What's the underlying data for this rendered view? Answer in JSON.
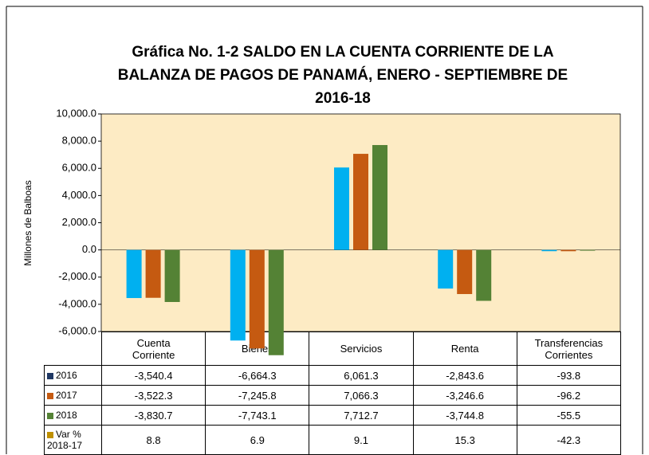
{
  "chart_data": {
    "type": "bar",
    "title": [
      "Gráfica No. 1-2  SALDO EN LA CUENTA CORRIENTE DE LA",
      "BALANZA DE PAGOS DE PANAMÁ, ENERO - SEPTIEMBRE DE",
      "2016-18"
    ],
    "y_label": "Millones de Balboas",
    "categories": [
      "Cuenta Corriente",
      "Bienes",
      "Servicios",
      "Renta",
      "Transferencias Corrientes"
    ],
    "series": [
      {
        "name": "2016",
        "color": "#00b0f0",
        "key_color": "#1f3864",
        "values": [
          -3540.4,
          -6664.3,
          6061.3,
          -2843.6,
          -93.8
        ],
        "value_labels": [
          "-3,540.4",
          "-6,664.3",
          "6,061.3",
          "-2,843.6",
          "-93.8"
        ]
      },
      {
        "name": "2017",
        "color": "#c55a11",
        "key_color": "#c55a11",
        "values": [
          -3522.3,
          -7245.8,
          7066.3,
          -3246.6,
          -96.2
        ],
        "value_labels": [
          "-3,522.3",
          "-7,245.8",
          "7,066.3",
          "-3,246.6",
          "-96.2"
        ]
      },
      {
        "name": "2018",
        "color": "#548235",
        "key_color": "#548235",
        "values": [
          -3830.7,
          -7743.1,
          7712.7,
          -3744.8,
          -55.5
        ],
        "value_labels": [
          "-3,830.7",
          "-7,743.1",
          "7,712.7",
          "-3,744.8",
          "-55.5"
        ]
      },
      {
        "name": "Var % 2018-17",
        "key_color": "#bf9000",
        "values": [
          8.8,
          6.9,
          9.1,
          15.3,
          -42.3
        ]
      }
    ],
    "ylim": [
      -6000,
      10000
    ],
    "yticks": [
      {
        "value": -6000,
        "label": "-6,000.0"
      },
      {
        "value": -4000,
        "label": "-4,000.0"
      },
      {
        "value": -2000,
        "label": "-2,000.0"
      },
      {
        "value": 0,
        "label": "0.0"
      },
      {
        "value": 2000,
        "label": "2,000.0"
      },
      {
        "value": 4000,
        "label": "4,000.0"
      },
      {
        "value": 6000,
        "label": "6,000.0"
      },
      {
        "value": 8000,
        "label": "8,000.0"
      },
      {
        "value": 10000,
        "label": "10,000.0"
      }
    ],
    "plot_background": "#fdebc4"
  }
}
